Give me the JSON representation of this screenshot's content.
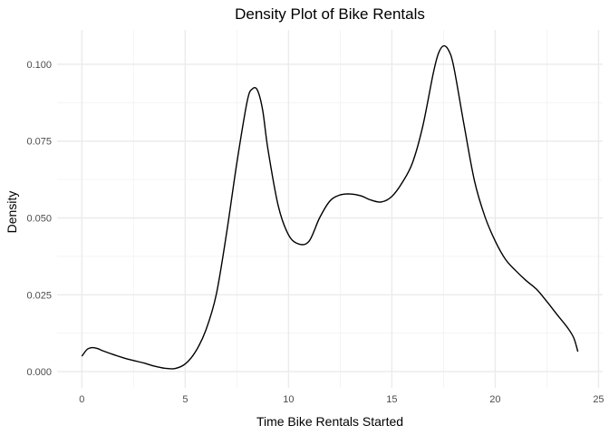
{
  "chart_data": {
    "type": "line",
    "title": "Density Plot of Bike Rentals",
    "xlabel": "Time Bike Rentals Started",
    "ylabel": "Density",
    "xlim": [
      -1.2,
      25.2
    ],
    "ylim": [
      -0.0053,
      0.1112
    ],
    "x_ticks": [
      0,
      5,
      10,
      15,
      20,
      25
    ],
    "x_tick_labels": [
      "0",
      "5",
      "10",
      "15",
      "20",
      "25"
    ],
    "y_ticks": [
      0.0,
      0.025,
      0.05,
      0.075,
      0.1
    ],
    "y_tick_labels": [
      "0.000",
      "0.025",
      "0.050",
      "0.075",
      "0.100"
    ],
    "x_minor_ticks": [
      2.5,
      7.5,
      12.5,
      17.5,
      22.5
    ],
    "y_minor_ticks": [
      0.0125,
      0.0375,
      0.0625,
      0.0875
    ],
    "grid": true,
    "legend": "none",
    "line_color": "#000000",
    "series": [
      {
        "x": [
          0,
          0.25,
          0.5,
          0.75,
          1,
          1.5,
          2,
          2.5,
          3,
          3.5,
          4,
          4.5,
          5,
          5.5,
          6,
          6.5,
          7,
          7.5,
          8,
          8.25,
          8.5,
          8.75,
          9,
          9.5,
          10,
          10.5,
          11,
          11.5,
          12,
          12.5,
          13,
          13.5,
          14,
          14.5,
          15,
          15.5,
          16,
          16.5,
          17,
          17.25,
          17.5,
          17.75,
          18,
          18.5,
          19,
          19.5,
          20,
          20.5,
          21,
          21.5,
          22,
          22.5,
          23,
          23.5,
          23.8,
          24
        ],
        "y": [
          0.005,
          0.0072,
          0.0078,
          0.0075,
          0.0068,
          0.0056,
          0.0045,
          0.0036,
          0.0028,
          0.0018,
          0.0011,
          0.001,
          0.0025,
          0.0065,
          0.0135,
          0.025,
          0.045,
          0.068,
          0.088,
          0.092,
          0.0915,
          0.085,
          0.0725,
          0.054,
          0.0445,
          0.0415,
          0.0425,
          0.05,
          0.0555,
          0.0575,
          0.0578,
          0.0572,
          0.0558,
          0.0552,
          0.057,
          0.0615,
          0.068,
          0.08,
          0.097,
          0.1035,
          0.106,
          0.1045,
          0.099,
          0.08,
          0.062,
          0.0505,
          0.0425,
          0.0365,
          0.0328,
          0.0296,
          0.0268,
          0.0228,
          0.0185,
          0.0143,
          0.011,
          0.0065
        ]
      }
    ]
  }
}
